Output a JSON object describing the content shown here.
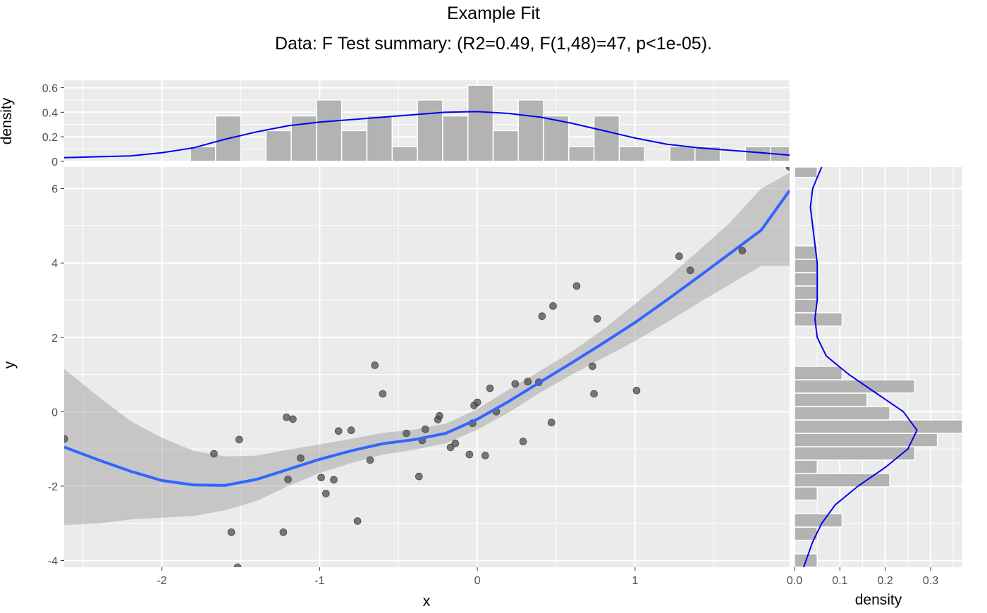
{
  "title": "Example Fit",
  "subtitle": "Data: F Test summary: (R2=0.49, F(1,48)=47, p<1e-05).",
  "chart_data": [
    {
      "panel": "main",
      "type": "scatter",
      "xlabel": "x",
      "ylabel": "y",
      "xlim": [
        -2.62,
        1.98
      ],
      "ylim": [
        -4.18,
        6.58
      ],
      "xticks": [
        -2,
        -1,
        0,
        1
      ],
      "yticks": [
        -4,
        -2,
        0,
        2,
        4,
        6
      ],
      "xtick_labels": [
        "-2",
        "-1",
        "0",
        "1"
      ],
      "ytick_labels": [
        "-4",
        "-2",
        "0",
        "2",
        "4",
        "6"
      ],
      "grid": true,
      "points": [
        [
          -2.62,
          -0.73
        ],
        [
          -1.67,
          -1.13
        ],
        [
          -1.56,
          -3.24
        ],
        [
          -1.52,
          -4.18
        ],
        [
          -1.51,
          -0.75
        ],
        [
          -1.23,
          -3.24
        ],
        [
          -1.21,
          -0.15
        ],
        [
          -1.2,
          -1.82
        ],
        [
          -1.17,
          -0.2
        ],
        [
          -1.12,
          -1.25
        ],
        [
          -0.99,
          -1.77
        ],
        [
          -0.96,
          -2.2
        ],
        [
          -0.91,
          -1.83
        ],
        [
          -0.88,
          -0.52
        ],
        [
          -0.8,
          -0.5
        ],
        [
          -0.76,
          -2.94
        ],
        [
          -0.68,
          -1.3
        ],
        [
          -0.65,
          1.25
        ],
        [
          -0.6,
          0.48
        ],
        [
          -0.45,
          -0.58
        ],
        [
          -0.37,
          -1.74
        ],
        [
          -0.35,
          -0.77
        ],
        [
          -0.33,
          -0.47
        ],
        [
          -0.25,
          -0.21
        ],
        [
          -0.24,
          -0.11
        ],
        [
          -0.17,
          -0.96
        ],
        [
          -0.14,
          -0.85
        ],
        [
          -0.05,
          -1.15
        ],
        [
          -0.03,
          -0.31
        ],
        [
          -0.02,
          0.17
        ],
        [
          0.0,
          0.25
        ],
        [
          0.05,
          -1.18
        ],
        [
          0.08,
          0.63
        ],
        [
          0.12,
          0.0
        ],
        [
          0.24,
          0.75
        ],
        [
          0.29,
          -0.8
        ],
        [
          0.32,
          0.81
        ],
        [
          0.39,
          0.79
        ],
        [
          0.41,
          2.57
        ],
        [
          0.47,
          -0.29
        ],
        [
          0.48,
          2.84
        ],
        [
          0.63,
          3.38
        ],
        [
          0.73,
          1.22
        ],
        [
          0.74,
          0.48
        ],
        [
          0.76,
          2.5
        ],
        [
          1.01,
          0.57
        ],
        [
          1.28,
          4.18
        ],
        [
          1.35,
          3.8
        ],
        [
          1.68,
          4.33
        ],
        [
          1.98,
          6.58
        ]
      ],
      "smooth_fit": {
        "x": [
          -2.62,
          -2.4,
          -2.2,
          -2.0,
          -1.8,
          -1.6,
          -1.4,
          -1.2,
          -1.0,
          -0.8,
          -0.6,
          -0.4,
          -0.2,
          0.0,
          0.2,
          0.4,
          0.6,
          0.8,
          1.0,
          1.2,
          1.4,
          1.6,
          1.8,
          1.98
        ],
        "y": [
          -0.95,
          -1.3,
          -1.6,
          -1.85,
          -1.97,
          -1.98,
          -1.82,
          -1.55,
          -1.28,
          -1.05,
          -0.86,
          -0.75,
          -0.58,
          -0.2,
          0.28,
          0.8,
          1.32,
          1.85,
          2.4,
          3.0,
          3.62,
          4.25,
          4.88,
          5.95
        ],
        "lower": [
          -3.05,
          -3.0,
          -2.9,
          -2.85,
          -2.8,
          -2.65,
          -2.4,
          -2.0,
          -1.65,
          -1.38,
          -1.15,
          -1.02,
          -0.85,
          -0.48,
          -0.02,
          0.52,
          1.0,
          1.45,
          1.9,
          2.4,
          2.92,
          3.42,
          3.92,
          3.92
        ],
        "upper": [
          1.15,
          0.4,
          -0.25,
          -0.7,
          -1.05,
          -1.2,
          -1.18,
          -1.02,
          -0.88,
          -0.73,
          -0.57,
          -0.48,
          -0.32,
          0.07,
          0.6,
          1.1,
          1.62,
          2.22,
          2.9,
          3.58,
          4.32,
          5.08,
          6.0,
          6.42
        ]
      }
    },
    {
      "panel": "top-marginal",
      "type": "bar",
      "ylabel": "density",
      "ylim": [
        0,
        0.66
      ],
      "yticks": [
        0,
        0.2,
        0.4,
        0.6
      ],
      "ytick_labels": [
        "0",
        "0.2",
        "0.4",
        "0.6"
      ],
      "grid": true,
      "bins": [
        {
          "x0": -1.82,
          "x1": -1.66,
          "density": 0.12
        },
        {
          "x0": -1.66,
          "x1": -1.5,
          "density": 0.37
        },
        {
          "x0": -1.34,
          "x1": -1.18,
          "density": 0.25
        },
        {
          "x0": -1.18,
          "x1": -1.02,
          "density": 0.37
        },
        {
          "x0": -1.02,
          "x1": -0.86,
          "density": 0.5
        },
        {
          "x0": -0.86,
          "x1": -0.7,
          "density": 0.25
        },
        {
          "x0": -0.7,
          "x1": -0.54,
          "density": 0.37
        },
        {
          "x0": -0.54,
          "x1": -0.38,
          "density": 0.12
        },
        {
          "x0": -0.38,
          "x1": -0.22,
          "density": 0.5
        },
        {
          "x0": -0.22,
          "x1": -0.06,
          "density": 0.37
        },
        {
          "x0": -0.06,
          "x1": 0.1,
          "density": 0.62
        },
        {
          "x0": 0.1,
          "x1": 0.26,
          "density": 0.25
        },
        {
          "x0": 0.26,
          "x1": 0.42,
          "density": 0.5
        },
        {
          "x0": 0.42,
          "x1": 0.58,
          "density": 0.37
        },
        {
          "x0": 0.58,
          "x1": 0.74,
          "density": 0.12
        },
        {
          "x0": 0.74,
          "x1": 0.9,
          "density": 0.37
        },
        {
          "x0": 0.9,
          "x1": 1.06,
          "density": 0.12
        },
        {
          "x0": 1.22,
          "x1": 1.38,
          "density": 0.12
        },
        {
          "x0": 1.38,
          "x1": 1.54,
          "density": 0.12
        },
        {
          "x0": 1.7,
          "x1": 1.86,
          "density": 0.12
        },
        {
          "x0": 1.86,
          "x1": 2.02,
          "density": 0.12
        }
      ],
      "density_curve": {
        "x": [
          -2.62,
          -2.2,
          -2.0,
          -1.8,
          -1.6,
          -1.4,
          -1.2,
          -1.0,
          -0.8,
          -0.6,
          -0.4,
          -0.2,
          0.0,
          0.2,
          0.4,
          0.6,
          0.8,
          1.0,
          1.2,
          1.4,
          1.6,
          1.8,
          1.98
        ],
        "y": [
          0.03,
          0.045,
          0.07,
          0.11,
          0.18,
          0.24,
          0.29,
          0.32,
          0.34,
          0.36,
          0.38,
          0.4,
          0.405,
          0.39,
          0.36,
          0.31,
          0.25,
          0.19,
          0.14,
          0.11,
          0.09,
          0.07,
          0.05
        ]
      }
    },
    {
      "panel": "right-marginal",
      "type": "bar",
      "xlabel": "density",
      "xlim": [
        0,
        0.37
      ],
      "xticks": [
        0.0,
        0.1,
        0.2,
        0.3
      ],
      "xtick_labels": [
        "0.0",
        "0.1",
        "0.2",
        "0.3"
      ],
      "grid": true,
      "bins": [
        {
          "y0": -4.18,
          "y1": -3.82,
          "density": 0.05
        },
        {
          "y0": -3.46,
          "y1": -3.1,
          "density": 0.05
        },
        {
          "y0": -3.1,
          "y1": -2.74,
          "density": 0.105
        },
        {
          "y0": -2.38,
          "y1": -2.02,
          "density": 0.05
        },
        {
          "y0": -2.02,
          "y1": -1.66,
          "density": 0.21
        },
        {
          "y0": -1.66,
          "y1": -1.3,
          "density": 0.05
        },
        {
          "y0": -1.3,
          "y1": -0.94,
          "density": 0.265
        },
        {
          "y0": -0.94,
          "y1": -0.58,
          "density": 0.315
        },
        {
          "y0": -0.58,
          "y1": -0.22,
          "density": 0.37
        },
        {
          "y0": -0.22,
          "y1": 0.14,
          "density": 0.21
        },
        {
          "y0": 0.14,
          "y1": 0.5,
          "density": 0.16
        },
        {
          "y0": 0.5,
          "y1": 0.86,
          "density": 0.265
        },
        {
          "y0": 0.86,
          "y1": 1.22,
          "density": 0.105
        },
        {
          "y0": 2.3,
          "y1": 2.66,
          "density": 0.105
        },
        {
          "y0": 2.66,
          "y1": 3.02,
          "density": 0.05
        },
        {
          "y0": 3.02,
          "y1": 3.38,
          "density": 0.05
        },
        {
          "y0": 3.38,
          "y1": 3.74,
          "density": 0.05
        },
        {
          "y0": 3.74,
          "y1": 4.1,
          "density": 0.05
        },
        {
          "y0": 4.1,
          "y1": 4.46,
          "density": 0.05
        },
        {
          "y0": 6.3,
          "y1": 6.66,
          "density": 0.05
        }
      ],
      "density_curve": {
        "y": [
          -4.18,
          -3.5,
          -3.0,
          -2.5,
          -2.0,
          -1.5,
          -1.0,
          -0.5,
          0.0,
          0.5,
          1.0,
          1.5,
          2.0,
          2.5,
          3.0,
          3.5,
          4.0,
          4.5,
          5.0,
          5.5,
          6.0,
          6.3,
          6.58
        ],
        "density": [
          0.02,
          0.04,
          0.06,
          0.09,
          0.14,
          0.2,
          0.25,
          0.27,
          0.24,
          0.18,
          0.12,
          0.07,
          0.05,
          0.045,
          0.05,
          0.05,
          0.05,
          0.045,
          0.04,
          0.035,
          0.04,
          0.05,
          0.06
        ]
      }
    }
  ]
}
